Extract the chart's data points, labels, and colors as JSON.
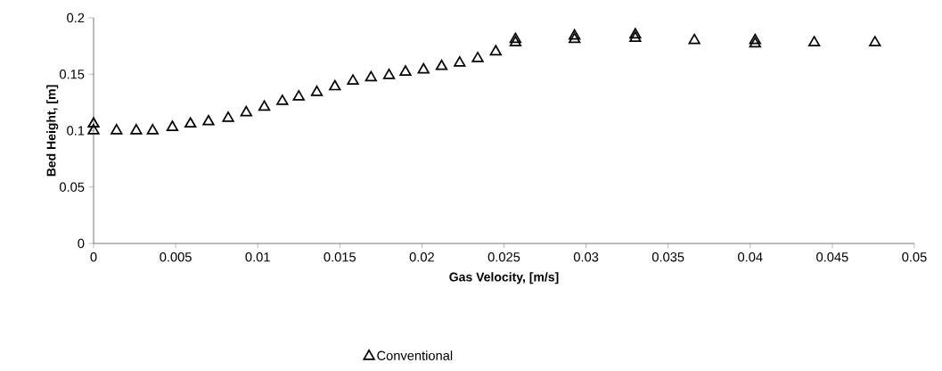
{
  "chart_data": {
    "type": "scatter",
    "xlabel": "Gas Velocity, [m/s]",
    "ylabel": "Bed Height, [m]",
    "xlim": [
      0,
      0.05
    ],
    "ylim": [
      0,
      0.2
    ],
    "xticks": [
      0,
      0.005,
      0.01,
      0.015,
      0.02,
      0.025,
      0.03,
      0.035,
      0.04,
      0.045,
      0.05
    ],
    "yticks": [
      0,
      0.05,
      0.1,
      0.15,
      0.2
    ],
    "marker": "triangle",
    "legend": "bottom",
    "grid": false,
    "series": [
      {
        "name": "Conventional",
        "color": "#000000",
        "x": [
          0,
          0,
          0.0014,
          0.0026,
          0.0036,
          0.0048,
          0.0059,
          0.007,
          0.0082,
          0.0093,
          0.0104,
          0.0115,
          0.0125,
          0.0136,
          0.0147,
          0.0158,
          0.0169,
          0.018,
          0.019,
          0.0201,
          0.0212,
          0.0223,
          0.0234,
          0.0245,
          0.0257,
          0.0257,
          0.0293,
          0.0293,
          0.033,
          0.033,
          0.0366,
          0.0403,
          0.0403,
          0.0439,
          0.0476
        ],
        "values": [
          0.1,
          0.106,
          0.1,
          0.1,
          0.1,
          0.103,
          0.106,
          0.108,
          0.111,
          0.116,
          0.121,
          0.126,
          0.13,
          0.134,
          0.139,
          0.144,
          0.147,
          0.149,
          0.152,
          0.154,
          0.157,
          0.16,
          0.164,
          0.17,
          0.178,
          0.181,
          0.181,
          0.184,
          0.182,
          0.185,
          0.18,
          0.177,
          0.18,
          0.178,
          0.178
        ]
      }
    ]
  }
}
